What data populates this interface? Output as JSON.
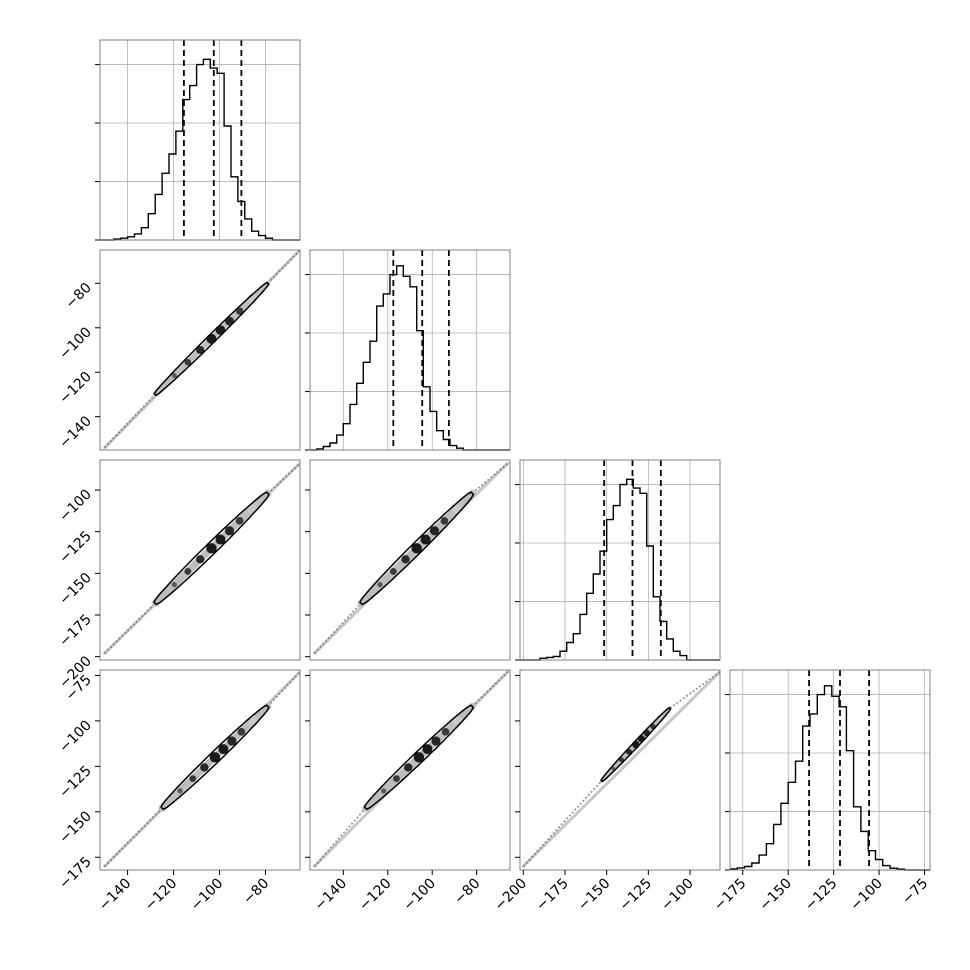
{
  "chart_data": {
    "type": "corner",
    "parameters": 4,
    "grid": true,
    "colors": {
      "line": "#000000",
      "grid": "#b0b0b0",
      "frame": "#808080"
    },
    "axes": [
      {
        "range": [
          -152,
          -65
        ],
        "ticks": [
          -140,
          -120,
          -100,
          -80
        ],
        "labels": [
          "−140",
          "−120",
          "−100",
          "−80"
        ]
      },
      {
        "range": [
          -155,
          -65
        ],
        "ticks": [
          -140,
          -120,
          -100,
          -80
        ],
        "labels": [
          "−140",
          "−120",
          "−100",
          "−80"
        ]
      },
      {
        "range": [
          -202,
          -82
        ],
        "ticks": [
          -200,
          -175,
          -150,
          -125,
          -100
        ],
        "labels": [
          "−200",
          "−175",
          "−150",
          "−125",
          "−100"
        ]
      },
      {
        "range": [
          -182,
          -72
        ],
        "ticks": [
          -175,
          -150,
          -125,
          -100,
          -75
        ],
        "labels": [
          "−175",
          "−150",
          "−125",
          "−100",
          "−75"
        ]
      }
    ],
    "diagonals": [
      {
        "param": 0,
        "quantiles": [
          -115.5,
          -102.5,
          -90.5
        ],
        "ymax": 1.14,
        "hist_edges": [
          -152,
          -149,
          -146,
          -143,
          -140,
          -137,
          -134,
          -131,
          -128,
          -125,
          -122,
          -119,
          -116,
          -113,
          -110,
          -107,
          -104,
          -101,
          -98,
          -95,
          -92,
          -89,
          -86,
          -83,
          -80,
          -77,
          -74,
          -71,
          -68,
          -65
        ],
        "hist_counts": [
          0,
          0,
          0.005,
          0.01,
          0.018,
          0.035,
          0.07,
          0.15,
          0.26,
          0.38,
          0.49,
          0.62,
          0.8,
          0.88,
          1.0,
          1.03,
          0.98,
          0.95,
          0.65,
          0.36,
          0.22,
          0.12,
          0.05,
          0.025,
          0.01,
          0,
          0,
          0,
          0
        ]
      },
      {
        "param": 1,
        "quantiles": [
          -117.5,
          -104.5,
          -92.5
        ],
        "ymax": 1.14,
        "hist_edges": [
          -155,
          -152,
          -149,
          -146,
          -143,
          -140,
          -137,
          -134,
          -131,
          -128,
          -125,
          -122,
          -119,
          -116,
          -113,
          -110,
          -107,
          -104,
          -101,
          -98,
          -95,
          -92,
          -89,
          -86,
          -83,
          -80,
          -77,
          -74,
          -71,
          -68,
          -65
        ],
        "hist_counts": [
          0,
          0.006,
          0.02,
          0.04,
          0.085,
          0.15,
          0.26,
          0.38,
          0.5,
          0.62,
          0.82,
          0.89,
          1.0,
          1.05,
          0.99,
          0.93,
          0.68,
          0.36,
          0.22,
          0.11,
          0.06,
          0.025,
          0.01,
          0,
          0,
          0,
          0,
          0,
          0,
          0
        ]
      },
      {
        "param": 2,
        "quantiles": [
          -151.5,
          -134.5,
          -117.5
        ],
        "ymax": 1.14,
        "hist_edges": [
          -202,
          -198,
          -194,
          -190,
          -186,
          -182,
          -178,
          -174,
          -170,
          -166,
          -162,
          -158,
          -154,
          -150,
          -146,
          -142,
          -138,
          -134,
          -130,
          -126,
          -122,
          -118,
          -114,
          -110,
          -106,
          -102,
          -98,
          -94,
          -90,
          -86,
          -82
        ],
        "hist_counts": [
          0,
          0,
          0,
          0.01,
          0.015,
          0.02,
          0.05,
          0.1,
          0.15,
          0.26,
          0.38,
          0.49,
          0.62,
          0.8,
          0.88,
          1.0,
          1.03,
          0.98,
          0.95,
          0.65,
          0.36,
          0.22,
          0.12,
          0.05,
          0.025,
          0,
          0,
          0,
          0,
          0
        ]
      },
      {
        "param": 3,
        "quantiles": [
          -138.5,
          -121.5,
          -105.5
        ],
        "ymax": 1.14,
        "hist_edges": [
          -182,
          -178,
          -174,
          -170,
          -166,
          -162,
          -158,
          -154,
          -150,
          -146,
          -142,
          -138,
          -134,
          -130,
          -126,
          -122,
          -118,
          -114,
          -110,
          -106,
          -102,
          -98,
          -94,
          -90,
          -86,
          -82,
          -78,
          -74,
          -72
        ],
        "hist_counts": [
          0.006,
          0.012,
          0.02,
          0.04,
          0.085,
          0.15,
          0.26,
          0.38,
          0.5,
          0.62,
          0.82,
          0.89,
          1.0,
          1.05,
          0.99,
          0.93,
          0.68,
          0.36,
          0.22,
          0.11,
          0.06,
          0.025,
          0.01,
          0.005,
          0,
          0,
          0,
          0
        ]
      }
    ],
    "pairs": [
      {
        "x": 0,
        "y": 1,
        "from": [
          -150,
          -154
        ],
        "to": [
          -65,
          -65
        ],
        "contour_from": [
          -128,
          -130
        ],
        "contour_to": [
          -79,
          -80
        ],
        "width": 2.6
      },
      {
        "x": 0,
        "y": 2,
        "from": [
          -150,
          -198
        ],
        "to": [
          -65,
          -84
        ],
        "contour_from": [
          -128,
          -168
        ],
        "contour_to": [
          -79,
          -102
        ],
        "width": 3.6
      },
      {
        "x": 1,
        "y": 2,
        "from": [
          -153,
          -198
        ],
        "to": [
          -66,
          -84
        ],
        "contour_from": [
          -132,
          -168
        ],
        "contour_to": [
          -82,
          -102
        ],
        "width": 3.6
      },
      {
        "x": 0,
        "y": 3,
        "from": [
          -150,
          -180
        ],
        "to": [
          -65,
          -73
        ],
        "contour_from": [
          -125,
          -148
        ],
        "contour_to": [
          -79,
          -92
        ],
        "width": 3.5
      },
      {
        "x": 1,
        "y": 3,
        "from": [
          -153,
          -180
        ],
        "to": [
          -66,
          -73
        ],
        "contour_from": [
          -130,
          -148
        ],
        "contour_to": [
          -82,
          -92
        ],
        "width": 3.5
      },
      {
        "x": 2,
        "y": 3,
        "from": [
          -200,
          -180
        ],
        "to": [
          -82,
          -73
        ],
        "contour_from": [
          -153,
          -133
        ],
        "contour_to": [
          -112,
          -93
        ],
        "width": 1.8
      }
    ]
  }
}
